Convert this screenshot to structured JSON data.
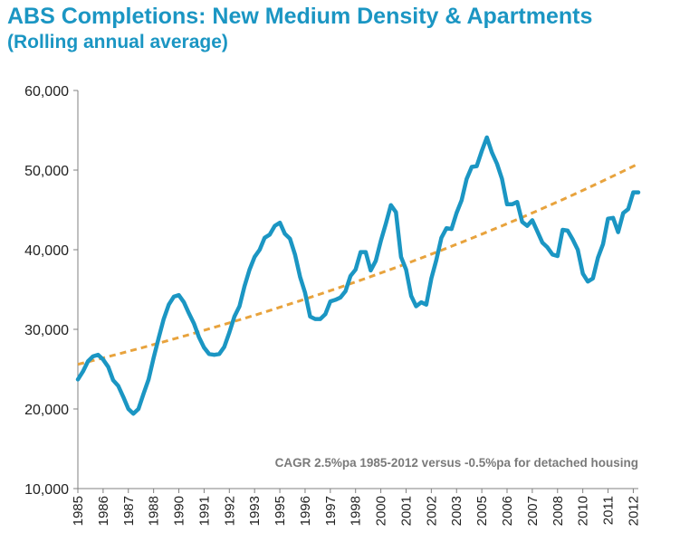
{
  "title": "ABS Completions: New Medium Density & Apartments",
  "subtitle": "(Rolling annual average)",
  "colors": {
    "title": "#1b96c3",
    "series": "#1b96c3",
    "trend": "#e8a33d",
    "axis": "#808080",
    "note": "#7a7a7a"
  },
  "chart_data": {
    "type": "line",
    "title": "ABS Completions: New Medium Density & Apartments",
    "subtitle": "(Rolling annual average)",
    "ylim": [
      10000,
      60000
    ],
    "yticks": [
      10000,
      20000,
      30000,
      40000,
      50000,
      60000
    ],
    "ytick_labels": [
      "10,000",
      "20,000",
      "30,000",
      "40,000",
      "50,000",
      "60,000"
    ],
    "xlim": [
      1985.0,
      2012.75
    ],
    "xtick_labels": [
      "1985",
      "1986",
      "1987",
      "1988",
      "1990",
      "1991",
      "1992",
      "1993",
      "1995",
      "1996",
      "1997",
      "1998",
      "2000",
      "2001",
      "2002",
      "2003",
      "2005",
      "2006",
      "2007",
      "2008",
      "2010",
      "2011",
      "2012"
    ],
    "xtick_values": [
      1985.0,
      1986.25,
      1987.5,
      1988.75,
      1990.0,
      1991.25,
      1992.5,
      1993.75,
      1995.0,
      1996.25,
      1997.5,
      1998.75,
      2000.0,
      2001.25,
      2002.5,
      2003.75,
      2005.0,
      2006.25,
      2007.5,
      2008.75,
      2010.0,
      2011.25,
      2012.5
    ],
    "grid": false,
    "annotation": "CAGR 2.5%pa 1985-2012 versus -0.5%pa for detached housing",
    "series": [
      {
        "style": "solid",
        "x": [
          1985.0,
          1985.25,
          1985.5,
          1985.75,
          1986.0,
          1986.25,
          1986.5,
          1986.75,
          1987.0,
          1987.25,
          1987.5,
          1987.75,
          1988.0,
          1988.25,
          1988.5,
          1988.75,
          1989.0,
          1989.25,
          1989.5,
          1989.75,
          1990.0,
          1990.25,
          1990.5,
          1990.75,
          1991.0,
          1991.25,
          1991.5,
          1991.75,
          1992.0,
          1992.25,
          1992.5,
          1992.75,
          1993.0,
          1993.25,
          1993.5,
          1993.75,
          1994.0,
          1994.25,
          1994.5,
          1994.75,
          1995.0,
          1995.25,
          1995.5,
          1995.75,
          1996.0,
          1996.25,
          1996.5,
          1996.75,
          1997.0,
          1997.25,
          1997.5,
          1997.75,
          1998.0,
          1998.25,
          1998.5,
          1998.75,
          1999.0,
          1999.25,
          1999.5,
          1999.75,
          2000.0,
          2000.25,
          2000.5,
          2000.75,
          2001.0,
          2001.25,
          2001.5,
          2001.75,
          2002.0,
          2002.25,
          2002.5,
          2002.75,
          2003.0,
          2003.25,
          2003.5,
          2003.75,
          2004.0,
          2004.25,
          2004.5,
          2004.75,
          2005.0,
          2005.25,
          2005.5,
          2005.75,
          2006.0,
          2006.25,
          2006.5,
          2006.75,
          2007.0,
          2007.25,
          2007.5,
          2007.75,
          2008.0,
          2008.25,
          2008.5,
          2008.75,
          2009.0,
          2009.25,
          2009.5,
          2009.75,
          2010.0,
          2010.25,
          2010.5,
          2010.75,
          2011.0,
          2011.25,
          2011.5,
          2011.75,
          2012.0,
          2012.25,
          2012.5,
          2012.75
        ],
        "values": [
          23700,
          24700,
          26000,
          26600,
          26800,
          26200,
          25300,
          23600,
          22900,
          21500,
          20000,
          19400,
          20000,
          21900,
          23700,
          26400,
          28900,
          31300,
          33100,
          34100,
          34300,
          33400,
          32000,
          30700,
          29000,
          27700,
          26900,
          26800,
          26900,
          27800,
          29600,
          31600,
          32900,
          35400,
          37500,
          39100,
          40000,
          41500,
          41900,
          43000,
          43400,
          42000,
          41400,
          39400,
          36600,
          34600,
          31600,
          31300,
          31300,
          31900,
          33500,
          33700,
          34000,
          34800,
          36700,
          37500,
          39700,
          39700,
          37400,
          38600,
          41100,
          43300,
          45600,
          44700,
          39100,
          37500,
          34200,
          32900,
          33400,
          33100,
          36400,
          38700,
          41500,
          42700,
          42600,
          44600,
          46200,
          48900,
          50400,
          50500,
          52400,
          54100,
          52200,
          50800,
          48900,
          45700,
          45700,
          46000,
          43500,
          43000,
          43700,
          42300,
          40900,
          40300,
          39400,
          39200,
          42500,
          42400,
          41300,
          40000,
          37000,
          36000,
          36400,
          39000,
          40700,
          43900,
          44000,
          42200,
          44600,
          45100,
          47200,
          47200
        ]
      },
      {
        "style": "dashed",
        "x": [
          1985.0,
          1986.0,
          1987.0,
          1988.0,
          1989.0,
          1990.0,
          1991.0,
          1992.0,
          1993.0,
          1994.0,
          1995.0,
          1996.0,
          1997.0,
          1998.0,
          1999.0,
          2000.0,
          2001.0,
          2002.0,
          2003.0,
          2004.0,
          2005.0,
          2006.0,
          2007.0,
          2008.0,
          2009.0,
          2010.0,
          2011.0,
          2012.0,
          2012.75
        ],
        "values": [
          25600,
          26240,
          26900,
          27570,
          28260,
          28970,
          29690,
          30430,
          31190,
          31970,
          32770,
          33590,
          34430,
          35290,
          36170,
          37080,
          38000,
          38950,
          39930,
          40930,
          41950,
          43000,
          44070,
          45170,
          46300,
          47460,
          48650,
          49860,
          50800
        ]
      }
    ]
  }
}
